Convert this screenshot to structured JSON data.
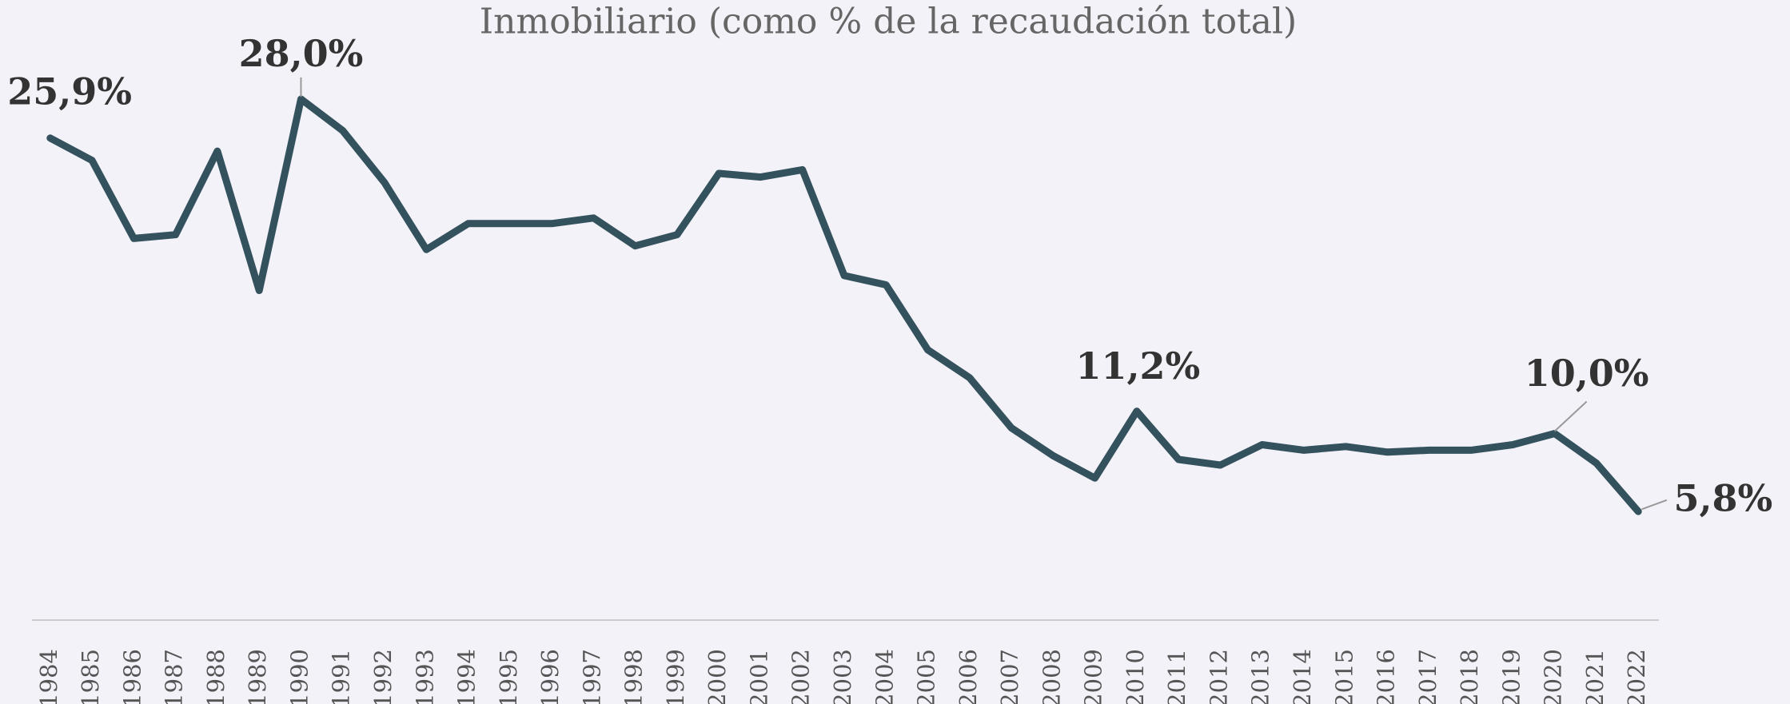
{
  "chart_data": {
    "type": "line",
    "title": "Inmobiliario (como % de la recaudación total)",
    "categories": [
      "1984",
      "1985",
      "1986",
      "1987",
      "1988",
      "1989",
      "1990",
      "1991",
      "1992",
      "1993",
      "1994",
      "1995",
      "1996",
      "1997",
      "1998",
      "1999",
      "2000",
      "2001",
      "2002",
      "2003",
      "2004",
      "2005",
      "2006",
      "2007",
      "2008",
      "2009",
      "2010",
      "2011",
      "2012",
      "2013",
      "2014",
      "2015",
      "2016",
      "2017",
      "2018",
      "2019",
      "2020",
      "2021",
      "2022"
    ],
    "series": [
      {
        "name": "Inmobiliario",
        "color": "#34515e",
        "values": [
          25.9,
          24.7,
          20.5,
          20.7,
          25.2,
          17.7,
          28.0,
          26.3,
          23.5,
          19.9,
          21.3,
          21.3,
          21.3,
          21.6,
          20.1,
          20.7,
          24.0,
          23.8,
          24.2,
          18.5,
          18.0,
          14.5,
          13.0,
          10.3,
          8.8,
          7.6,
          11.2,
          8.6,
          8.3,
          9.4,
          9.1,
          9.3,
          9.0,
          9.1,
          9.1,
          9.4,
          10.0,
          8.4,
          5.8
        ],
        "value_labels": [
          "25,9%",
          null,
          null,
          null,
          null,
          null,
          "28,0%",
          null,
          null,
          null,
          null,
          null,
          null,
          null,
          null,
          null,
          null,
          null,
          null,
          null,
          null,
          null,
          null,
          null,
          null,
          null,
          "11,2%",
          null,
          null,
          null,
          null,
          null,
          null,
          null,
          null,
          null,
          "10,0%",
          null,
          "5,8%"
        ]
      }
    ],
    "ylim": [
      0,
      30
    ]
  }
}
